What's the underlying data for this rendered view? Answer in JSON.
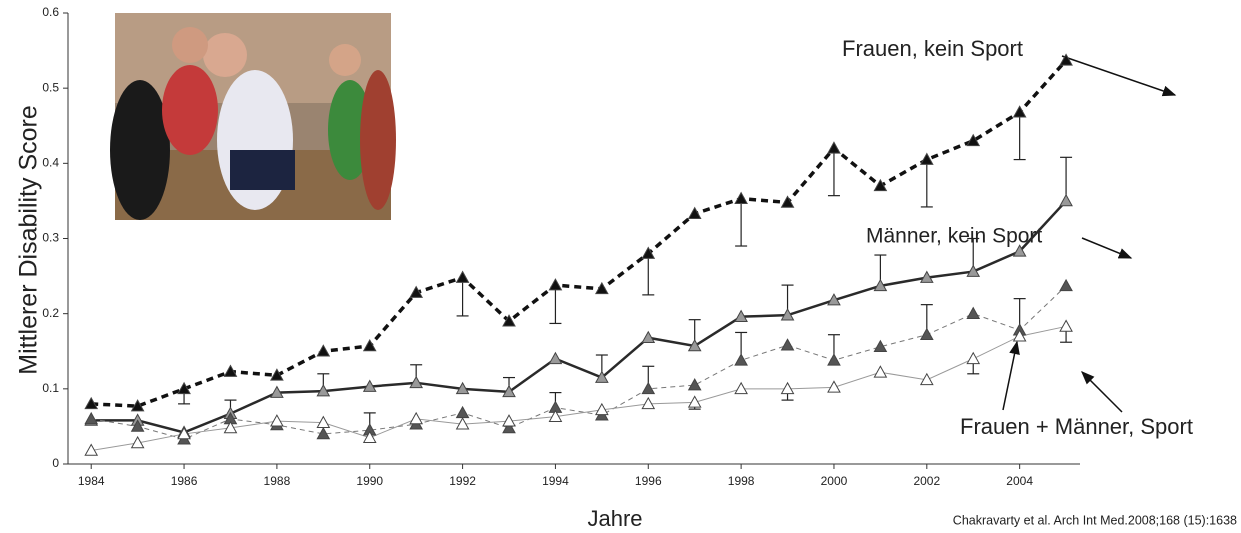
{
  "chart_data": {
    "type": "line",
    "x_label": "Jahre",
    "y_label": "Mittlerer Disability Score",
    "source": "Chakravarty et al. Arch Int Med.2008;168 (15):1638",
    "annotation": "Frauen + Männer, Sport",
    "x": [
      1984,
      1985,
      1986,
      1987,
      1988,
      1989,
      1990,
      1991,
      1992,
      1993,
      1994,
      1995,
      1996,
      1997,
      1998,
      1999,
      2000,
      2001,
      2002,
      2003,
      2004,
      2005
    ],
    "xlim": [
      1983.5,
      2005.3
    ],
    "xticks": [
      1984,
      1986,
      1988,
      1990,
      1992,
      1994,
      1996,
      1998,
      2000,
      2002,
      2004
    ],
    "ylim": [
      0,
      0.6
    ],
    "yticks": [
      0,
      0.1,
      0.2,
      0.3,
      0.4,
      0.5,
      0.6
    ],
    "series": [
      {
        "name": "Frauen, kein Sport",
        "color": "#111111",
        "marker_color": "#111111",
        "dashed": true,
        "width": 3.5,
        "values": [
          0.08,
          0.077,
          0.1,
          0.123,
          0.118,
          0.15,
          0.157,
          0.228,
          0.248,
          0.19,
          0.238,
          0.233,
          0.28,
          0.333,
          0.353,
          0.348,
          0.42,
          0.37,
          0.405,
          0.43,
          0.468,
          0.537
        ],
        "error_bar_ends": [
          null,
          null,
          0.08,
          null,
          null,
          null,
          null,
          null,
          0.197,
          null,
          0.187,
          null,
          0.225,
          null,
          0.29,
          null,
          0.357,
          null,
          0.342,
          null,
          0.405,
          null
        ]
      },
      {
        "name": "Männer, kein Sport",
        "color": "#2a2a2a",
        "marker_color": "#999999",
        "dashed": false,
        "width": 2.5,
        "values": [
          0.058,
          0.058,
          0.042,
          0.067,
          0.095,
          0.097,
          0.103,
          0.108,
          0.1,
          0.096,
          0.14,
          0.115,
          0.168,
          0.157,
          0.196,
          0.198,
          0.218,
          0.237,
          0.248,
          0.256,
          0.283,
          0.35
        ],
        "error_bar_ends": [
          null,
          null,
          null,
          0.085,
          null,
          0.12,
          null,
          0.132,
          null,
          0.115,
          null,
          0.145,
          null,
          0.192,
          null,
          0.238,
          null,
          0.278,
          null,
          0.3,
          null,
          0.408
        ]
      },
      {
        "color": "#777777",
        "marker_color": "#555555",
        "dashed": true,
        "width": 1,
        "values": [
          0.06,
          0.05,
          0.033,
          0.06,
          0.052,
          0.04,
          0.045,
          0.053,
          0.068,
          0.048,
          0.075,
          0.065,
          0.1,
          0.105,
          0.138,
          0.158,
          0.138,
          0.156,
          0.172,
          0.2,
          0.178,
          0.237
        ],
        "error_bar_ends": [
          null,
          null,
          null,
          null,
          null,
          null,
          0.068,
          null,
          null,
          null,
          0.095,
          null,
          0.13,
          null,
          0.175,
          null,
          0.172,
          null,
          0.212,
          null,
          0.22,
          null
        ]
      },
      {
        "color": "#999999",
        "marker_color": "#ffffff",
        "dashed": false,
        "width": 1,
        "values": [
          0.018,
          0.028,
          0.04,
          0.048,
          0.057,
          0.055,
          0.035,
          0.06,
          0.053,
          0.057,
          0.063,
          0.072,
          0.08,
          0.082,
          0.1,
          0.1,
          0.102,
          0.122,
          0.112,
          0.14,
          0.17,
          0.183
        ],
        "error_bar_ends": [
          null,
          null,
          null,
          null,
          null,
          null,
          null,
          null,
          null,
          null,
          null,
          null,
          null,
          0.073,
          null,
          0.085,
          null,
          null,
          null,
          0.12,
          null,
          0.162
        ]
      }
    ]
  }
}
